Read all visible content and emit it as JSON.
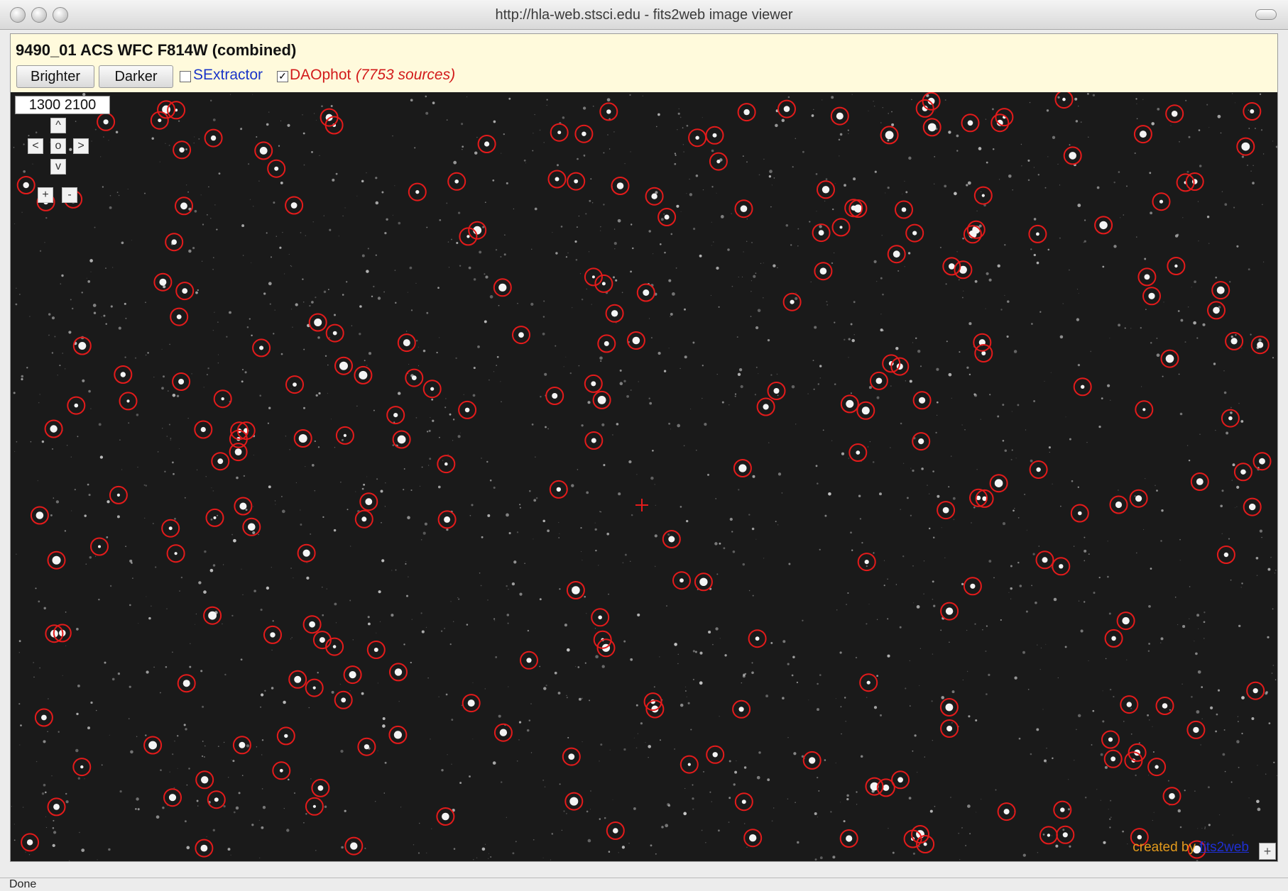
{
  "window": {
    "title": "http://hla-web.stsci.edu - fits2web image viewer"
  },
  "viewer": {
    "image_title": "9490_01 ACS WFC F814W (combined)",
    "brighter_label": "Brighter",
    "darker_label": "Darker",
    "sextractor_label": "SExtractor",
    "sextractor_checked": false,
    "daophot_label": "DAOphot",
    "daophot_checked": true,
    "daophot_count": "(7753 sources)",
    "coordinates": "1300 2100",
    "nav": {
      "up": "^",
      "left": "<",
      "center": "o",
      "right": ">",
      "down": "v",
      "zoom_in": "+",
      "zoom_out": "-"
    },
    "credit_prefix": "created by",
    "credit_link": "fits2web",
    "corner_button": "+"
  },
  "status": {
    "text": "Done"
  },
  "colors": {
    "header_bg": "#fffadc",
    "source_circle": "#e41b1b",
    "sextractor_text": "#1a35c8",
    "daophot_text": "#d21a1a",
    "credit_text": "#e39a1c"
  }
}
